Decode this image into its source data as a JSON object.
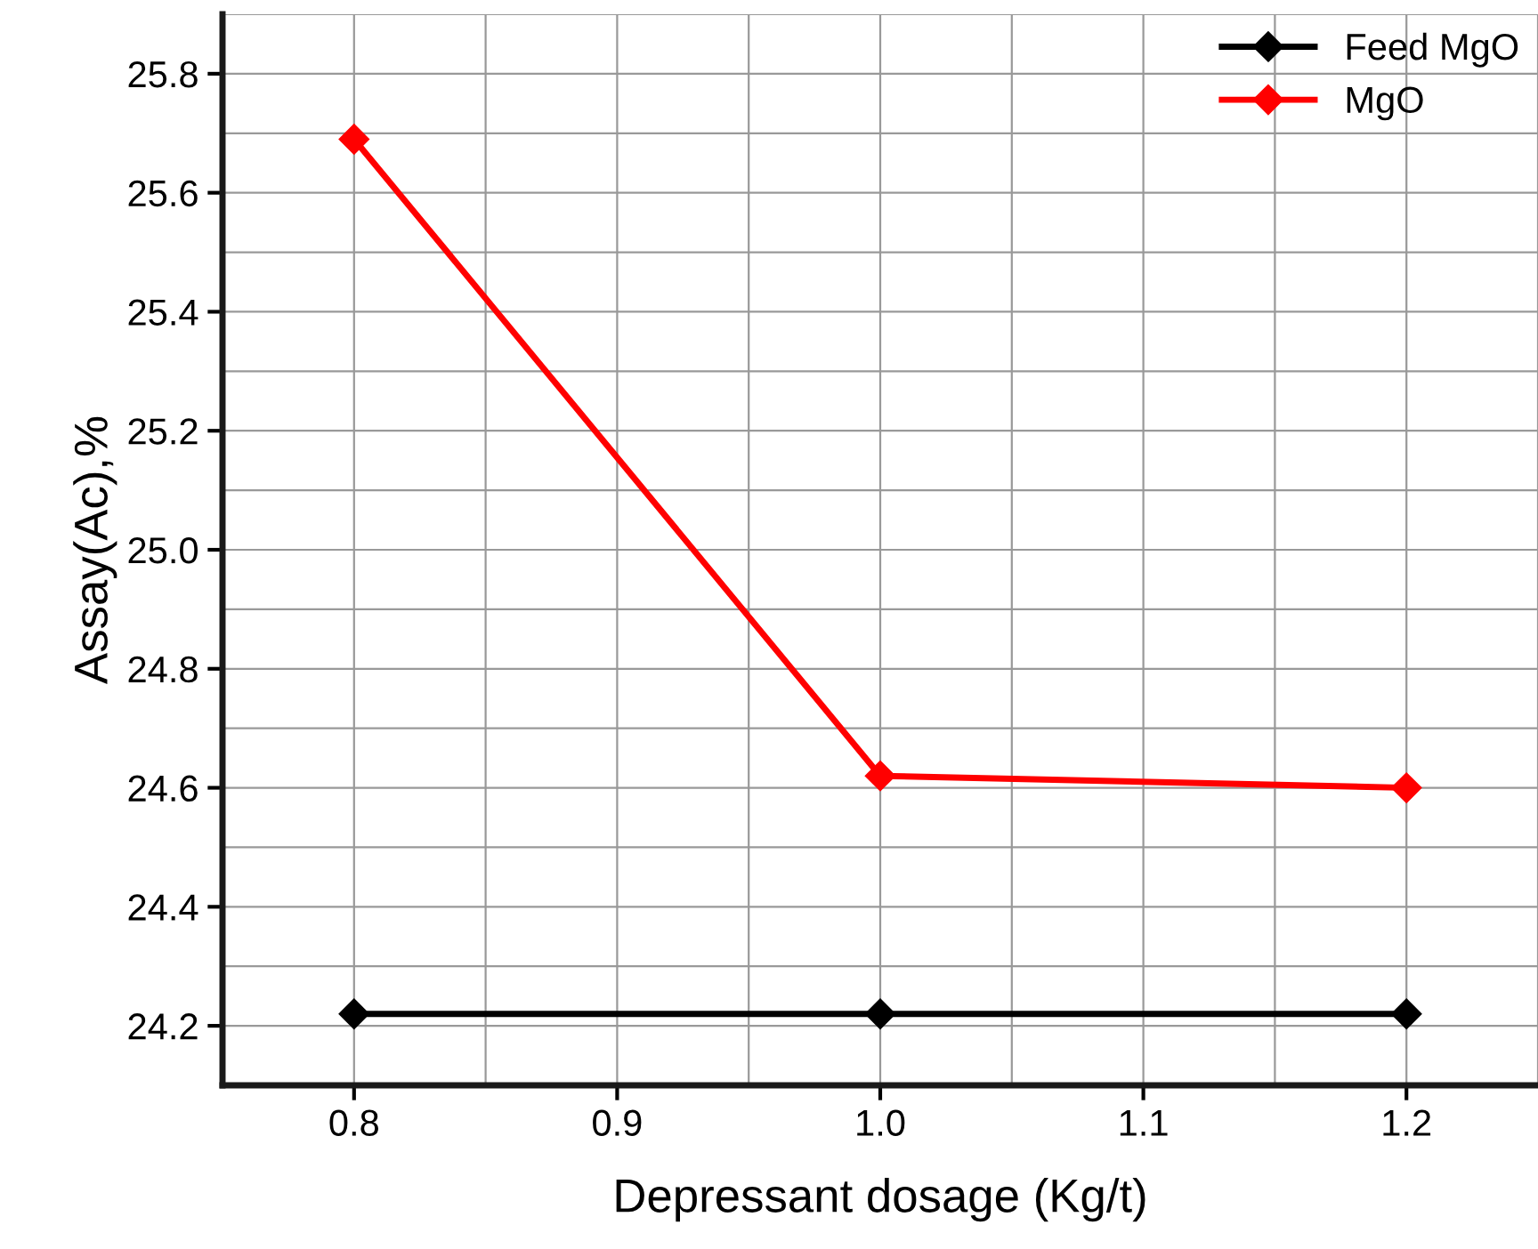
{
  "chart_data": {
    "type": "line",
    "xlabel": "Depressant dosage (Kg/t)",
    "ylabel": "Assay(Ac),%",
    "x": [
      0.8,
      1.0,
      1.2
    ],
    "series": [
      {
        "name": "Feed MgO",
        "color": "#000000",
        "values": [
          24.22,
          24.22,
          24.22
        ]
      },
      {
        "name": "MgO",
        "color": "#ff0000",
        "values": [
          25.69,
          24.62,
          24.6
        ]
      }
    ],
    "xlim": [
      0.75,
      1.25
    ],
    "xticks": [
      {
        "value": 0.8,
        "label": "0.8"
      },
      {
        "value": 0.9,
        "label": "0.9"
      },
      {
        "value": 1.0,
        "label": "1.0"
      },
      {
        "value": 1.1,
        "label": "1.1"
      },
      {
        "value": 1.2,
        "label": "1.2"
      }
    ],
    "ylim": [
      24.1,
      25.9
    ],
    "yticks": [
      {
        "value": 24.2,
        "label": "24.2"
      },
      {
        "value": 24.4,
        "label": "24.4"
      },
      {
        "value": 24.6,
        "label": "24.6"
      },
      {
        "value": 24.8,
        "label": "24.8"
      },
      {
        "value": 25.0,
        "label": "25.0"
      },
      {
        "value": 25.2,
        "label": "25.2"
      },
      {
        "value": 25.4,
        "label": "25.4"
      },
      {
        "value": 25.6,
        "label": "25.6"
      },
      {
        "value": 25.8,
        "label": "25.8"
      }
    ],
    "grid": true,
    "legend": "top right",
    "marker": "diamond",
    "line_style": "solid"
  }
}
